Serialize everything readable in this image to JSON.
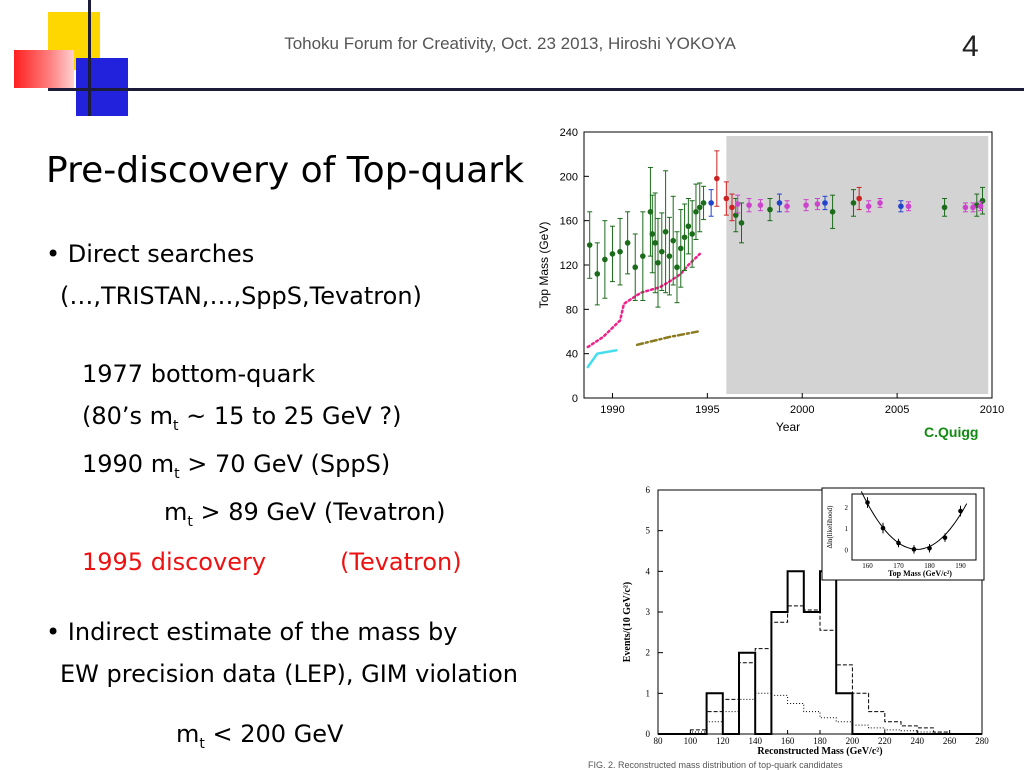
{
  "header": {
    "title": "Tohoku Forum for Creativity, Oct. 23 2013, Hiroshi YOKOYA",
    "page_number": "4"
  },
  "slide": {
    "title": "Pre-discovery of Top-quark",
    "direct_searches": "• Direct searches",
    "direct_searches_list": "(…,TRISTAN,…,SppS,Tevatron)",
    "bottom_quark": "1977 bottom-quark",
    "expect_a": "(80’s  m",
    "expect_sub": "t",
    "expect_b": " ~ 15 to 25 GeV ?)",
    "limit1990_a": "1990  m",
    "limit1990_sub": "t",
    "limit1990_b": " > 70 GeV (SppS)",
    "limit_tev_a": "m",
    "limit_tev_sub": "t",
    "limit_tev_b": " > 89 GeV (Tevatron)",
    "discovery_year": "1995  discovery",
    "discovery_where": "(Tevatron)",
    "indirect1": "• Indirect estimate of the mass by",
    "indirect2": "EW precision data (LEP), GIM violation",
    "bound_a": "m",
    "bound_sub": "t",
    "bound_b": " < 200 GeV"
  },
  "credit": "C.Quigg",
  "colors": {
    "red_text": "#ee1111",
    "green_credit": "#108a10",
    "shade": "#d3d3d3",
    "pink_curve": "#ee2288",
    "cyan_curve": "#44ddee",
    "olive_curve": "#8a7a20",
    "magenta_points": "#cc44cc"
  },
  "chart_data": [
    {
      "type": "scatter",
      "title": "",
      "xlabel": "Year",
      "ylabel": "Top Mass (GeV)",
      "xlim": [
        1988.5,
        2010
      ],
      "ylim": [
        0,
        240
      ],
      "xticks": [
        1990,
        1995,
        2000,
        2005,
        2010
      ],
      "yticks": [
        0,
        40,
        80,
        120,
        160,
        200,
        240
      ],
      "shaded_region_x": [
        1996,
        2009.8
      ],
      "series": [
        {
          "color": "#1a6b1a",
          "points": [
            {
              "x": 1988.8,
              "y": 138,
              "err": 30
            },
            {
              "x": 1989.2,
              "y": 112,
              "err": 28
            },
            {
              "x": 1989.6,
              "y": 125,
              "err": 35
            },
            {
              "x": 1990.0,
              "y": 130,
              "err": 25
            },
            {
              "x": 1990.4,
              "y": 132,
              "err": 30
            },
            {
              "x": 1990.8,
              "y": 140,
              "err": 28
            },
            {
              "x": 1991.2,
              "y": 118,
              "err": 30
            },
            {
              "x": 1991.6,
              "y": 128,
              "err": 40
            },
            {
              "x": 1992.0,
              "y": 168,
              "err": 40
            },
            {
              "x": 1992.1,
              "y": 148,
              "err": 35
            },
            {
              "x": 1992.25,
              "y": 140,
              "err": 45
            },
            {
              "x": 1992.4,
              "y": 122,
              "err": 40
            },
            {
              "x": 1992.6,
              "y": 132,
              "err": 35
            },
            {
              "x": 1992.8,
              "y": 150,
              "err": 55
            },
            {
              "x": 1993.0,
              "y": 128,
              "err": 35
            },
            {
              "x": 1993.2,
              "y": 142,
              "err": 40
            },
            {
              "x": 1993.4,
              "y": 118,
              "err": 32
            },
            {
              "x": 1993.6,
              "y": 135,
              "err": 35
            },
            {
              "x": 1993.8,
              "y": 145,
              "err": 30
            },
            {
              "x": 1994.0,
              "y": 155,
              "err": 25
            },
            {
              "x": 1994.2,
              "y": 148,
              "err": 30
            },
            {
              "x": 1994.4,
              "y": 168,
              "err": 25
            },
            {
              "x": 1994.6,
              "y": 172,
              "err": 22
            },
            {
              "x": 1994.8,
              "y": 176,
              "err": 15
            },
            {
              "x": 1996.5,
              "y": 165,
              "err": 15
            },
            {
              "x": 1996.8,
              "y": 158,
              "err": 18
            },
            {
              "x": 1998.3,
              "y": 170,
              "err": 10
            },
            {
              "x": 2001.6,
              "y": 168,
              "err": 15
            },
            {
              "x": 2002.7,
              "y": 176,
              "err": 12
            },
            {
              "x": 2007.5,
              "y": 172,
              "err": 8
            },
            {
              "x": 2009.2,
              "y": 174,
              "err": 10
            },
            {
              "x": 2009.5,
              "y": 178,
              "err": 12
            }
          ]
        },
        {
          "color": "#2244cc",
          "points": [
            {
              "x": 1995.2,
              "y": 176,
              "err": 12
            },
            {
              "x": 1998.8,
              "y": 176,
              "err": 8
            },
            {
              "x": 2001.2,
              "y": 176,
              "err": 6
            },
            {
              "x": 2005.2,
              "y": 173,
              "err": 5
            }
          ]
        },
        {
          "color": "#cc2222",
          "points": [
            {
              "x": 1995.5,
              "y": 198,
              "err": 25
            },
            {
              "x": 1996.0,
              "y": 180,
              "err": 15
            },
            {
              "x": 1996.3,
              "y": 172,
              "err": 12
            },
            {
              "x": 2003.0,
              "y": 180,
              "err": 10
            }
          ]
        },
        {
          "color": "#cc44cc",
          "points": [
            {
              "x": 1996.6,
              "y": 175,
              "err": 8
            },
            {
              "x": 1997.2,
              "y": 174,
              "err": 6
            },
            {
              "x": 1997.8,
              "y": 174,
              "err": 5
            },
            {
              "x": 1999.2,
              "y": 173,
              "err": 5
            },
            {
              "x": 2000.2,
              "y": 174,
              "err": 5
            },
            {
              "x": 2000.8,
              "y": 175,
              "err": 5
            },
            {
              "x": 2003.5,
              "y": 173,
              "err": 5
            },
            {
              "x": 2004.1,
              "y": 176,
              "err": 4
            },
            {
              "x": 2005.6,
              "y": 173,
              "err": 4
            },
            {
              "x": 2008.6,
              "y": 172,
              "err": 4
            },
            {
              "x": 2009.0,
              "y": 172,
              "err": 4
            },
            {
              "x": 2009.4,
              "y": 173,
              "err": 4
            }
          ]
        }
      ],
      "curves": [
        {
          "color": "#ee2288",
          "dash": "dots",
          "points": [
            [
              1988.7,
              46
            ],
            [
              1989.5,
              55
            ],
            [
              1990.4,
              70
            ],
            [
              1990.6,
              85
            ],
            [
              1991.5,
              95
            ],
            [
              1992.5,
              100
            ],
            [
              1993.0,
              105
            ],
            [
              1993.6,
              112
            ],
            [
              1994.0,
              120
            ],
            [
              1994.6,
              130
            ]
          ]
        },
        {
          "color": "#44ddee",
          "dash": "solid",
          "points": [
            [
              1988.7,
              28
            ],
            [
              1989.2,
              40
            ],
            [
              1990.2,
              43
            ]
          ]
        },
        {
          "color": "#8a7a20",
          "dash": "dashdot",
          "points": [
            [
              1991.3,
              48
            ],
            [
              1993.0,
              55
            ],
            [
              1994.5,
              60
            ]
          ]
        }
      ]
    },
    {
      "type": "bar",
      "title": "",
      "xlabel": "Reconstructed Mass (GeV/c²)",
      "ylabel": "Events/(10 GeV/c²)",
      "xlim": [
        80,
        280
      ],
      "ylim": [
        0,
        6
      ],
      "xticks": [
        80,
        100,
        120,
        140,
        160,
        180,
        200,
        220,
        240,
        260,
        280
      ],
      "yticks": [
        0,
        1,
        2,
        3,
        4,
        5,
        6
      ],
      "bin_edges": [
        80,
        90,
        100,
        110,
        120,
        130,
        140,
        150,
        160,
        170,
        180,
        190,
        200,
        210,
        220,
        230,
        240,
        250,
        260,
        270,
        280
      ],
      "series": [
        {
          "style": "solid",
          "values": [
            0,
            0,
            0,
            1,
            0,
            2,
            0,
            3,
            4,
            3,
            4,
            1,
            0,
            0,
            0,
            0,
            0,
            0,
            0,
            0
          ]
        },
        {
          "style": "dashed",
          "values": [
            0,
            0,
            0.1,
            0.55,
            0.85,
            1.75,
            2.1,
            2.75,
            3.15,
            3.05,
            2.55,
            1.7,
            1.0,
            0.55,
            0.3,
            0.2,
            0.15,
            0.05,
            0,
            0
          ]
        },
        {
          "style": "dotted",
          "values": [
            0,
            0,
            0.05,
            0.3,
            0.55,
            0.85,
            1.0,
            0.95,
            0.75,
            0.55,
            0.4,
            0.3,
            0.22,
            0.15,
            0.1,
            0.08,
            0.05,
            0.02,
            0,
            0
          ]
        }
      ]
    },
    {
      "type": "line",
      "title": "",
      "xlabel": "Top Mass (GeV/c²)",
      "ylabel": "Δln(likelihood)",
      "xlim": [
        155,
        195
      ],
      "ylim": [
        -0.5,
        2.6
      ],
      "xticks": [
        160,
        170,
        180,
        190
      ],
      "yticks": [
        0,
        1,
        2
      ],
      "points": [
        {
          "x": 160,
          "y": 2.2,
          "err": 0.25
        },
        {
          "x": 165,
          "y": 1.0,
          "err": 0.25
        },
        {
          "x": 170,
          "y": 0.3,
          "err": 0.2
        },
        {
          "x": 175,
          "y": 0.0,
          "err": 0.2
        },
        {
          "x": 180,
          "y": 0.05,
          "err": 0.2
        },
        {
          "x": 185,
          "y": 0.55,
          "err": 0.2
        },
        {
          "x": 190,
          "y": 1.8,
          "err": 0.25
        }
      ],
      "fit_vertex": [
        176,
        0
      ],
      "fit_curvature": 0.0084
    }
  ],
  "caption": "FIG. 2. Reconstructed mass distribution of top-quark candidates"
}
